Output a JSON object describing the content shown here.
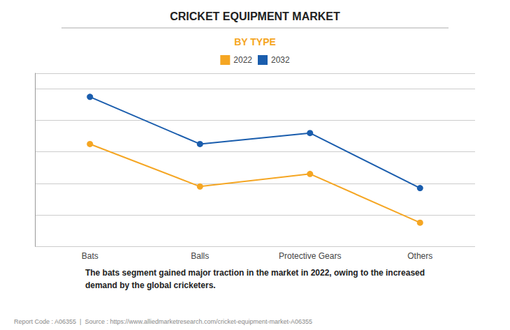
{
  "chart_data": {
    "type": "line",
    "title": "CRICKET EQUIPMENT MARKET",
    "subtitle": "BY TYPE",
    "subtitle_color": "#F5A623",
    "categories": [
      "Bats",
      "Balls",
      "Protective Gears",
      "Others"
    ],
    "series": [
      {
        "name": "2022",
        "color": "#F5A623",
        "values": [
          65,
          38,
          46,
          15
        ]
      },
      {
        "name": "2032",
        "color": "#1A5DAD",
        "values": [
          95,
          65,
          72,
          37
        ]
      }
    ],
    "ylim": [
      0,
      110
    ],
    "yticks": [
      0,
      20,
      40,
      60,
      80,
      100
    ],
    "grid": true,
    "tick_labels": "x",
    "legend": "top",
    "marker": "circle",
    "annotations": [
      "The bats segment gained major traction in the market in 2022, owing to the increased\ndemand by the global cricketers.",
      "Report Code : A06355  |  Source : https://www.alliedmarketresearch.com/cricket-equipment-market-A06355"
    ]
  }
}
